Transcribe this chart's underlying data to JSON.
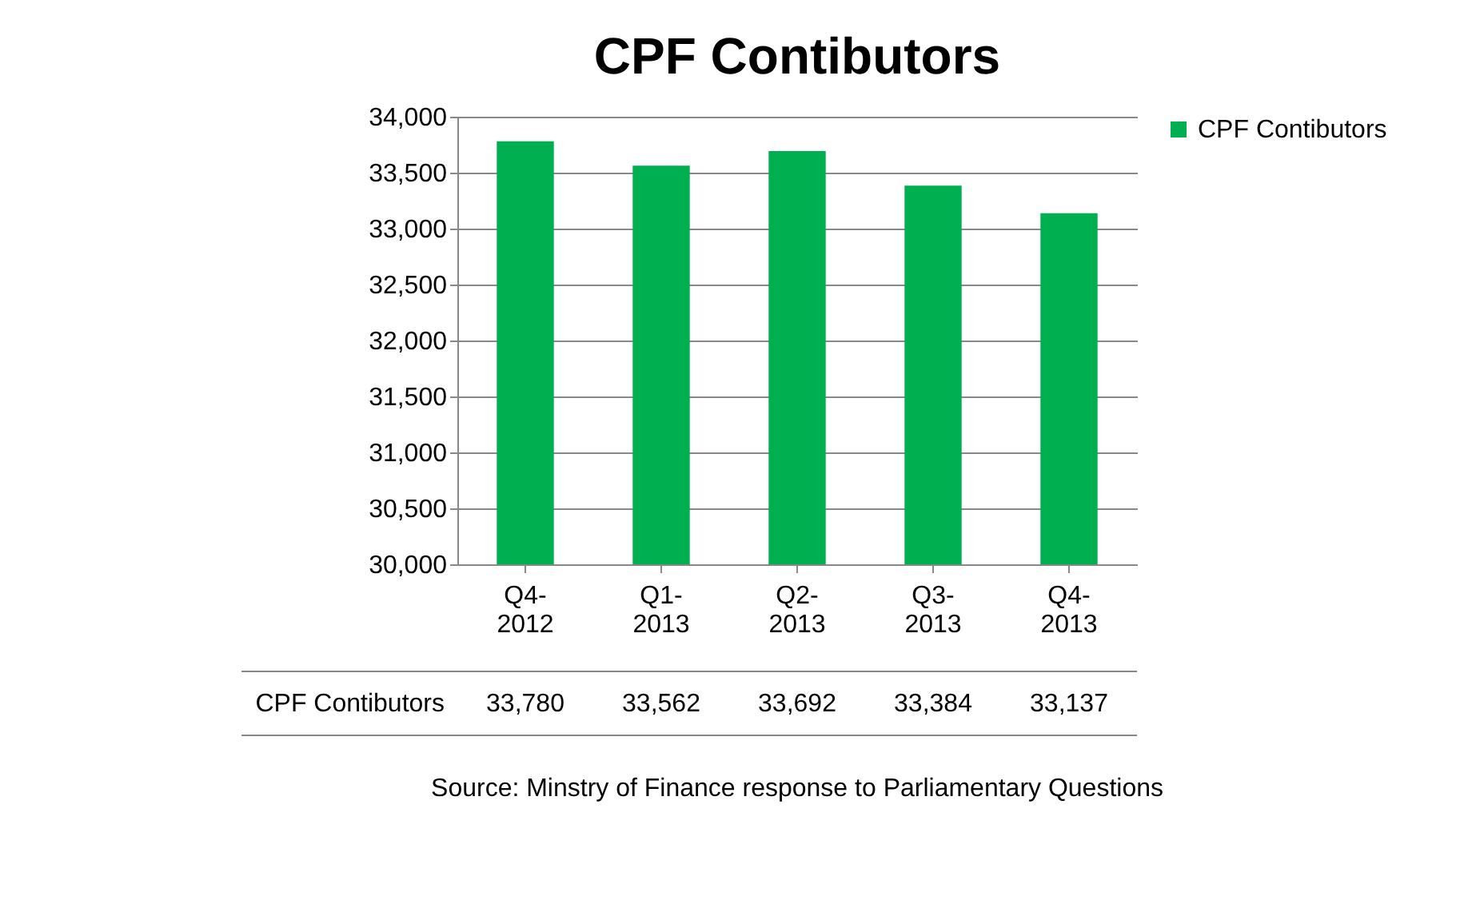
{
  "chart_data": {
    "type": "bar",
    "title": "CPF Contibutors",
    "categories": [
      "Q4-2012",
      "Q1-2013",
      "Q2-2013",
      "Q3-2013",
      "Q4-2013"
    ],
    "series": [
      {
        "name": "CPF Contibutors",
        "color": "#00b050",
        "values": [
          33780,
          33562,
          33692,
          33384,
          33137
        ],
        "value_labels": [
          "33,780",
          "33,562",
          "33,692",
          "33,384",
          "33,137"
        ]
      }
    ],
    "ylim": [
      30000,
      34000
    ],
    "yticks": [
      {
        "value": 30000,
        "label": "30,000"
      },
      {
        "value": 30500,
        "label": "30,500"
      },
      {
        "value": 31000,
        "label": "31,000"
      },
      {
        "value": 31500,
        "label": "31,500"
      },
      {
        "value": 32000,
        "label": "32,000"
      },
      {
        "value": 32500,
        "label": "32,500"
      },
      {
        "value": 33000,
        "label": "33,000"
      },
      {
        "value": 33500,
        "label": "33,500"
      },
      {
        "value": 34000,
        "label": "34,000"
      }
    ],
    "grid": "y",
    "legend": "right",
    "annotations": [
      "Source: Minstry of Finance response to Parliamentary Questions"
    ]
  }
}
